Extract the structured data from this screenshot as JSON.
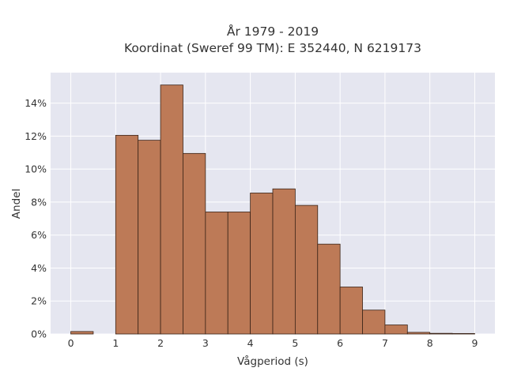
{
  "chart_data": {
    "type": "bar",
    "title_line1": "År 1979 - 2019",
    "title_line2": "Koordinat (Sweref 99 TM): E 352440, N 6219173",
    "xlabel": "Vågperiod (s)",
    "ylabel": "Andel",
    "bin_width": 0.5,
    "bins": [
      {
        "start": 0.0,
        "value": 0.15
      },
      {
        "start": 0.5,
        "value": 0.0
      },
      {
        "start": 1.0,
        "value": 12.05
      },
      {
        "start": 1.5,
        "value": 11.75
      },
      {
        "start": 2.0,
        "value": 15.1
      },
      {
        "start": 2.5,
        "value": 10.95
      },
      {
        "start": 3.0,
        "value": 7.4
      },
      {
        "start": 3.5,
        "value": 7.4
      },
      {
        "start": 4.0,
        "value": 8.55
      },
      {
        "start": 4.5,
        "value": 8.8
      },
      {
        "start": 5.0,
        "value": 7.8
      },
      {
        "start": 5.5,
        "value": 5.45
      },
      {
        "start": 6.0,
        "value": 2.85
      },
      {
        "start": 6.5,
        "value": 1.45
      },
      {
        "start": 7.0,
        "value": 0.55
      },
      {
        "start": 7.5,
        "value": 0.1
      },
      {
        "start": 8.0,
        "value": 0.04
      },
      {
        "start": 8.5,
        "value": 0.03
      }
    ],
    "x_ticks": [
      "0",
      "1",
      "2",
      "3",
      "4",
      "5",
      "6",
      "7",
      "8",
      "9"
    ],
    "x_tick_values": [
      0,
      1,
      2,
      3,
      4,
      5,
      6,
      7,
      8,
      9
    ],
    "y_ticks": [
      "0%",
      "2%",
      "4%",
      "6%",
      "8%",
      "10%",
      "12%",
      "14%"
    ],
    "y_tick_values": [
      0,
      2,
      4,
      6,
      8,
      10,
      12,
      14
    ],
    "xlim": [
      -0.45,
      9.45
    ],
    "ylim": [
      0,
      15.85
    ],
    "grid": true,
    "bar_color": "#bd7a57",
    "bar_edge_color": "#3a2418",
    "plot_bg": "#e5e6f0",
    "grid_color": "#ffffff"
  }
}
